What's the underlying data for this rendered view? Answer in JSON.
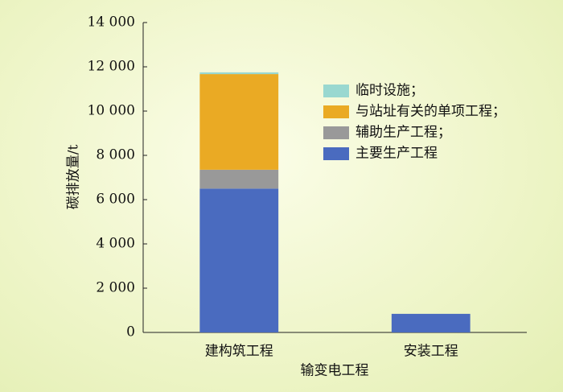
{
  "chart_data": {
    "type": "stacked_bar",
    "x_label": "输变电工程",
    "y_label": "碳排放量/t",
    "categories": [
      "建构筑工程",
      "安装工程"
    ],
    "series": [
      {
        "name": "主要生产工程",
        "color": "#4a6bbf",
        "values": [
          6500,
          840
        ]
      },
      {
        "name": "辅助生产工程；",
        "color": "#999999",
        "values": [
          850,
          0
        ]
      },
      {
        "name": "与站址有关的单项工程；",
        "color": "#eaaa24",
        "values": [
          4320,
          0
        ]
      },
      {
        "name": "临时设施；",
        "color": "#99d8d0",
        "values": [
          80,
          0
        ]
      }
    ],
    "ylim": [
      0,
      14000
    ],
    "yticks": [
      0,
      {
        "value": 2000,
        "label": "2 000"
      },
      {
        "value": 4000,
        "label": "4 000"
      },
      {
        "value": 6000,
        "label": "6 000"
      },
      {
        "value": 8000,
        "label": "8 000"
      },
      {
        "value": 10000,
        "label": "10 000"
      },
      {
        "value": 12000,
        "label": "12 000"
      },
      {
        "value": 14000,
        "label": "14 000"
      }
    ],
    "grid": false
  }
}
